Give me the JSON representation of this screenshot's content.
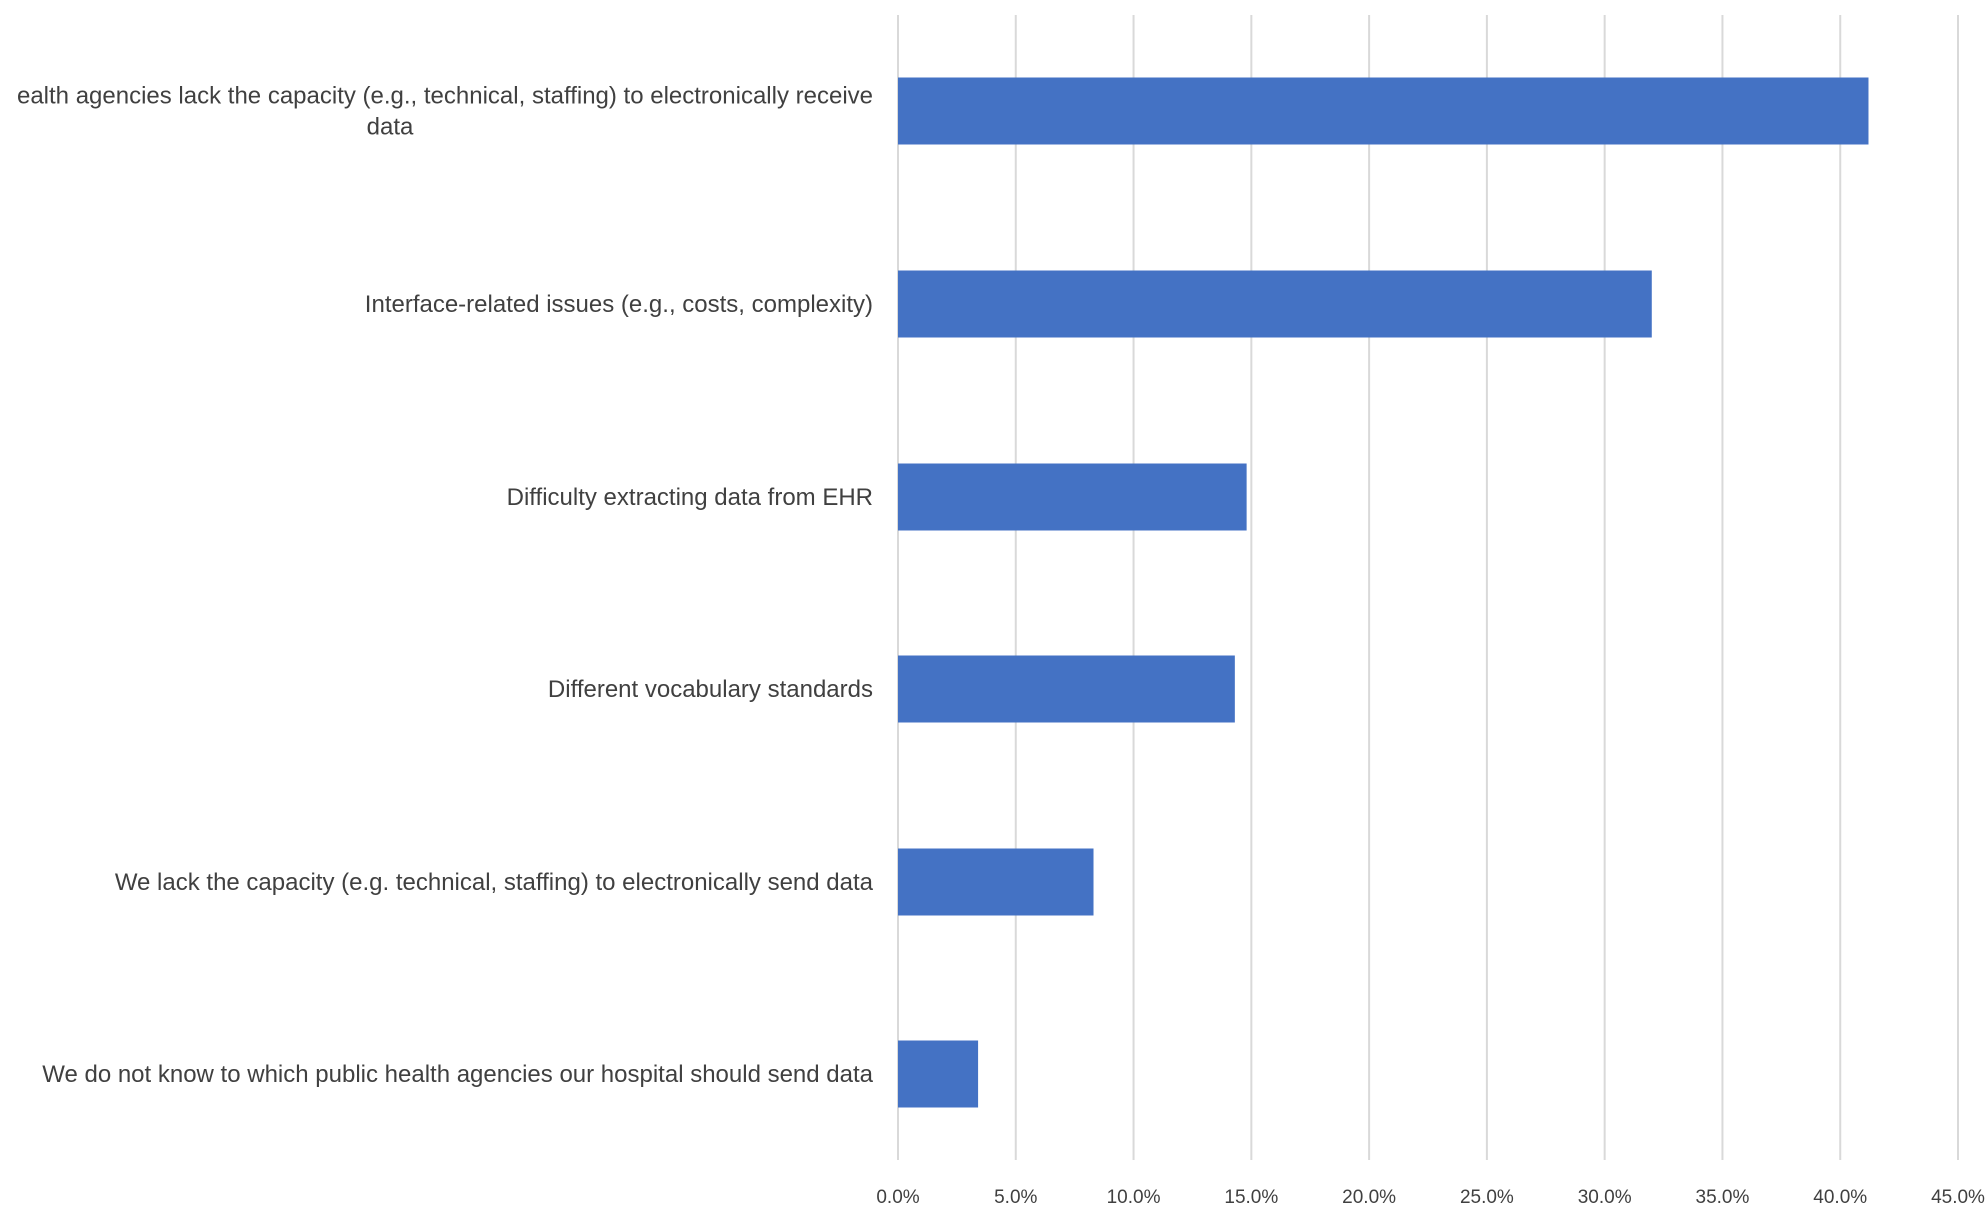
{
  "chart_data": {
    "type": "bar",
    "orientation": "horizontal",
    "categories": [
      "Public health agencies lack the capacity (e.g., technical, staffing) to electronically receive data",
      "Interface-related issues (e.g., costs, complexity)",
      "Difficulty extracting data from EHR",
      "Different vocabulary standards",
      "We lack the capacity (e.g. technical, staffing) to electronically send data",
      "We do not know to which public health agencies our hospital should send data"
    ],
    "category_lines": [
      [
        "ealth agencies lack the capacity (e.g., technical, staffing) to electronically receive",
        "data"
      ],
      [
        "Interface-related issues (e.g., costs, complexity)"
      ],
      [
        "Difficulty extracting data from EHR"
      ],
      [
        "Different vocabulary standards"
      ],
      [
        "We lack the capacity (e.g. technical, staffing) to electronically send data"
      ],
      [
        "We do not know to which public health agencies our hospital should send data"
      ]
    ],
    "values": [
      41.2,
      32.0,
      14.8,
      14.3,
      8.3,
      3.4
    ],
    "xlim": [
      0,
      45
    ],
    "xticks": [
      0,
      5,
      10,
      15,
      20,
      25,
      30,
      35,
      40,
      45
    ],
    "xtick_labels": [
      "0.0%",
      "5.0%",
      "10.0%",
      "15.0%",
      "20.0%",
      "25.0%",
      "30.0%",
      "35.0%",
      "40.0%",
      "45.0%"
    ],
    "grid": true,
    "legend": false,
    "title": "",
    "xlabel": "",
    "ylabel": "",
    "bar_color": "#4472C4",
    "grid_color": "#D9D9D9"
  }
}
